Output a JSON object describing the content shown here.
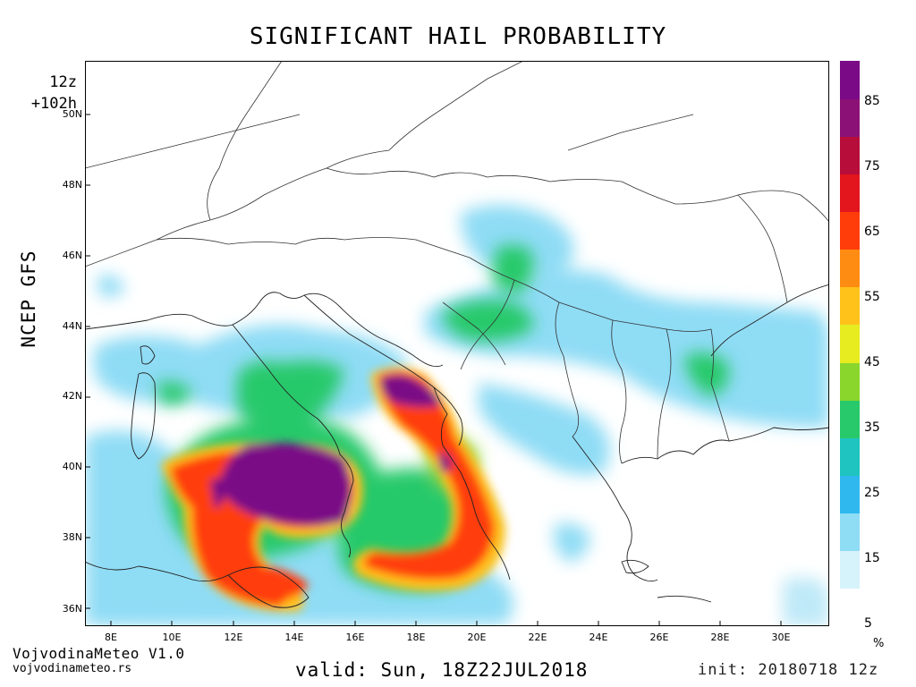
{
  "title": "SIGNIFICANT HAIL PROBABILITY",
  "run": {
    "cycle": "12z",
    "lead": "+102h"
  },
  "model": "NCEP GFS",
  "map": {
    "lat_labels": [
      "50N",
      "48N",
      "46N",
      "44N",
      "42N",
      "40N",
      "38N",
      "36N"
    ],
    "lon_labels": [
      "8E",
      "10E",
      "12E",
      "14E",
      "16E",
      "18E",
      "20E",
      "22E",
      "24E",
      "26E",
      "28E",
      "30E"
    ]
  },
  "colorbar": {
    "unit": "%",
    "tick_labels": [
      "85",
      "75",
      "65",
      "55",
      "45",
      "35",
      "25",
      "15",
      "5"
    ],
    "colors": [
      "#ffffff",
      "#d6f3fc",
      "#8fdcf5",
      "#2fb8ee",
      "#1fc4c0",
      "#28c96a",
      "#8ad62d",
      "#e6ec1f",
      "#ffc21a",
      "#ff8c12",
      "#ff3d0a",
      "#e3151d",
      "#b70d3a",
      "#8b1177",
      "#7a0a86"
    ]
  },
  "footer": {
    "brand": "VojvodinaMeteo V1.0",
    "site": "vojvodinameteo.rs",
    "valid": "valid: Sun, 18Z22JUL2018",
    "init": "init: 20180718 12z"
  }
}
